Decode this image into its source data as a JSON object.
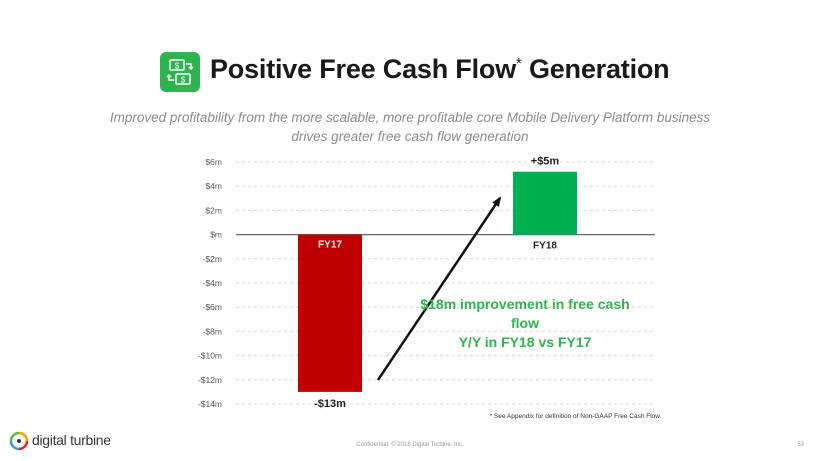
{
  "header": {
    "icon": "cash-exchange-icon",
    "title_main": "Positive Free Cash Flow",
    "title_mark": "*",
    "title_end": " Generation",
    "subtitle_line1": "Improved profitability from the more scalable, more profitable core Mobile Delivery Platform business",
    "subtitle_line2": "drives greater free cash flow generation"
  },
  "chart_data": {
    "type": "bar",
    "categories": [
      "FY17",
      "FY18"
    ],
    "values": [
      -13,
      5.2
    ],
    "value_labels": [
      "-$13m",
      "+$5m"
    ],
    "colors": [
      "#c00000",
      "#00b050"
    ],
    "ylim": [
      -14,
      6
    ],
    "yticks": [
      6,
      4,
      2,
      0,
      -2,
      -4,
      -6,
      -8,
      -10,
      -12,
      -14
    ],
    "ytick_labels": [
      "$6m",
      "$4m",
      "$2m",
      "$m",
      "-$2m",
      "-$4m",
      "-$6m",
      "-$8m",
      "-$10m",
      "-$12m",
      "-$14m"
    ],
    "grid": true,
    "annotation_line1": "$18m improvement in free cash flow",
    "annotation_line2": "Y/Y in FY18 vs FY17",
    "annotation_color": "#2eb34f"
  },
  "footer": {
    "footnote": "* See Appendix for definition of Non-GAAP Free Cash Flow",
    "confidential": "Confidential. © 2018 Digital Turbine, Inc.",
    "page_number": "53",
    "logo_text": "digital turbine"
  }
}
